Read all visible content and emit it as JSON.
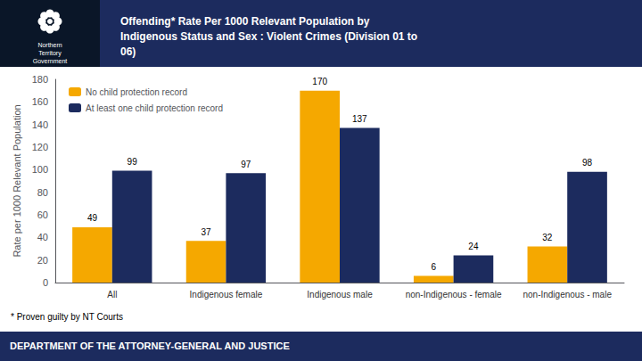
{
  "chart_data": {
    "type": "bar",
    "title": "Offending* Rate Per 1000 Relevant Population by\nIndigenous Status and Sex : Violent Crimes (Division 01 to\n06)",
    "categories": [
      "All",
      "Indigenous female",
      "Indigenous male",
      "non-Indigenous - female",
      "non-Indigenous - male"
    ],
    "series": [
      {
        "name": "No child protection record",
        "color": "#F5A800",
        "values": [
          49,
          37,
          170,
          6,
          32
        ]
      },
      {
        "name": "At least one child protection record",
        "color": "#1C2B5E",
        "values": [
          99,
          97,
          137,
          24,
          98
        ]
      }
    ],
    "ylabel": "Rate per 1000 Relevant Population",
    "ylim": [
      0,
      180
    ],
    "yticks": [
      0,
      20,
      40,
      60,
      80,
      100,
      120,
      140,
      160,
      180
    ],
    "grid": false,
    "legend": "upper left",
    "data_labels": true,
    "annotations": [
      "Northern\nTerritory\nGovernment",
      "* Proven guilty by NT Courts",
      "DEPARTMENT OF THE ATTORNEY-GENERAL AND JUSTICE"
    ]
  }
}
